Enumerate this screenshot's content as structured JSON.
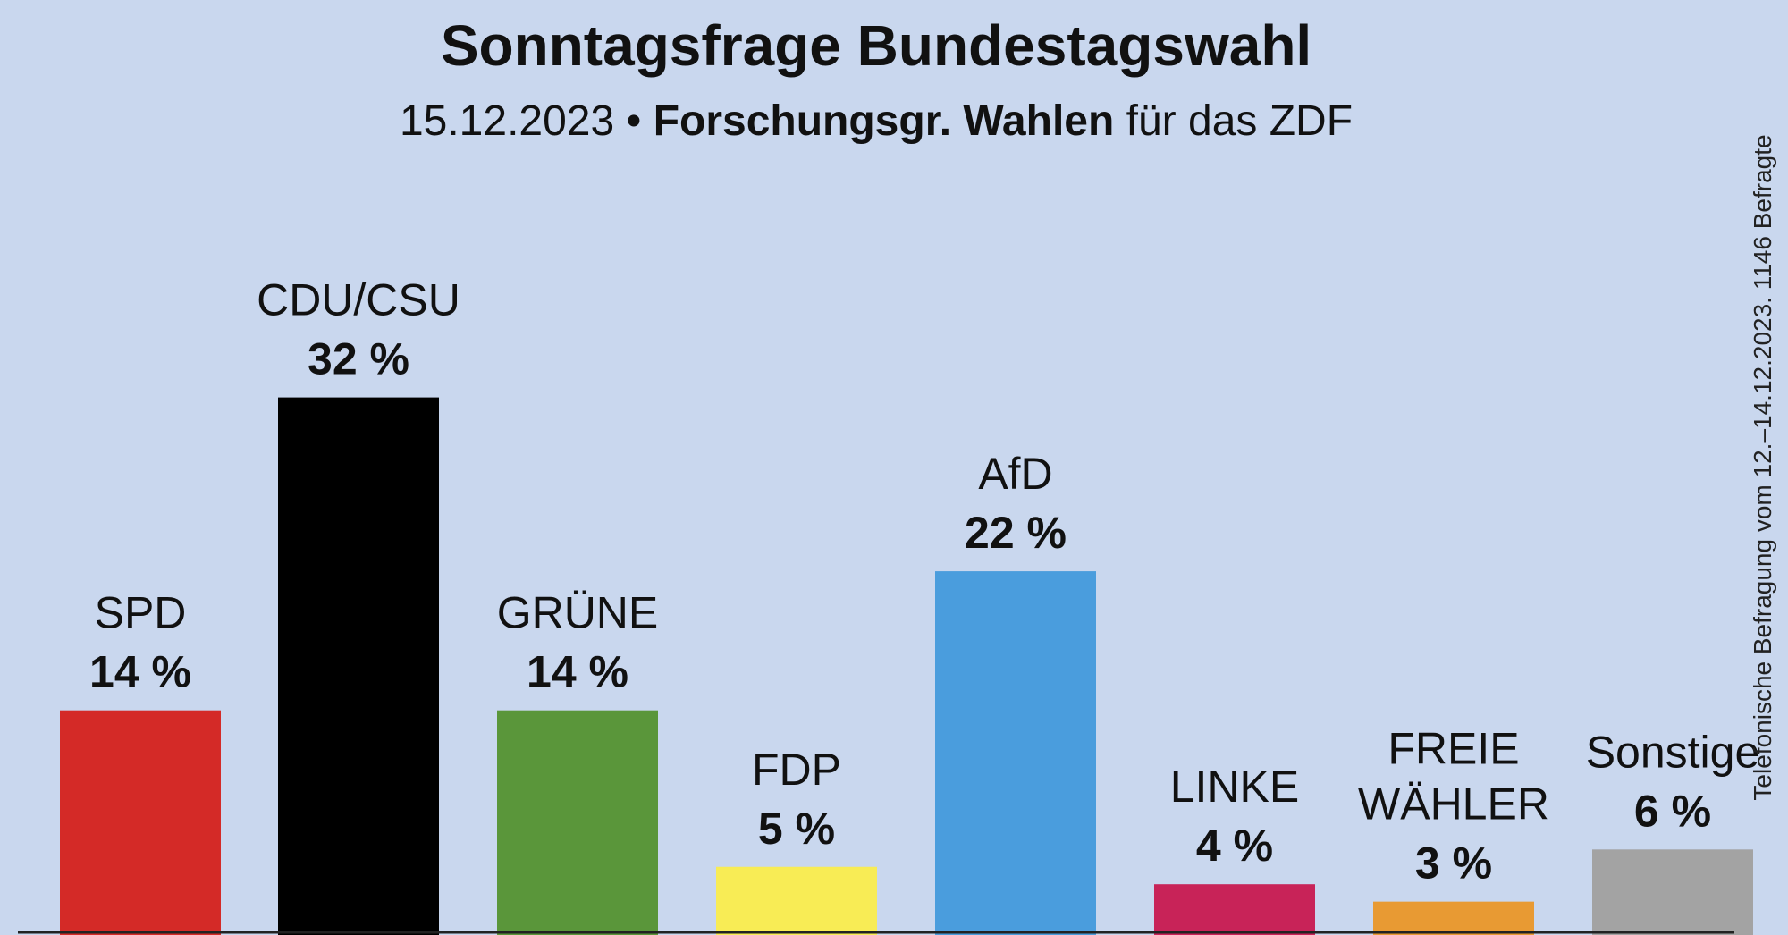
{
  "header": {
    "title": "Sonntagsfrage Bundestagswahl",
    "date": "15.12.2023",
    "separator": "•",
    "source": "Forschungsgr. Wahlen",
    "suffix": "für das ZDF"
  },
  "footnote": "Telefonische Befragung vom 12.–14.12.2023. 1146 Befragte",
  "chart_data": {
    "type": "bar",
    "title": "Sonntagsfrage Bundestagswahl",
    "subtitle": "15.12.2023 • Forschungsgr. Wahlen für das ZDF",
    "xlabel": "",
    "ylabel": "",
    "ylim": [
      0,
      32
    ],
    "grid": false,
    "unit": "%",
    "categories": [
      "SPD",
      "CDU/CSU",
      "GRÜNE",
      "FDP",
      "AfD",
      "LINKE",
      "FREIE WÄHLER",
      "Sonstige"
    ],
    "label_lines": [
      [
        "SPD"
      ],
      [
        "CDU/CSU"
      ],
      [
        "GRÜNE"
      ],
      [
        "FDP"
      ],
      [
        "AfD"
      ],
      [
        "LINKE"
      ],
      [
        "FREIE",
        "WÄHLER"
      ],
      [
        "Sonstige"
      ]
    ],
    "values": [
      14,
      32,
      14,
      5,
      22,
      4,
      3,
      6
    ],
    "value_labels": [
      "14 %",
      "32 %",
      "14 %",
      "5 %",
      "22 %",
      "4 %",
      "3 %",
      "6 %"
    ],
    "colors": [
      "#d42a27",
      "#000000",
      "#5a963a",
      "#f8ec55",
      "#4a9ddd",
      "#c82358",
      "#e89a33",
      "#a3a3a3"
    ]
  }
}
